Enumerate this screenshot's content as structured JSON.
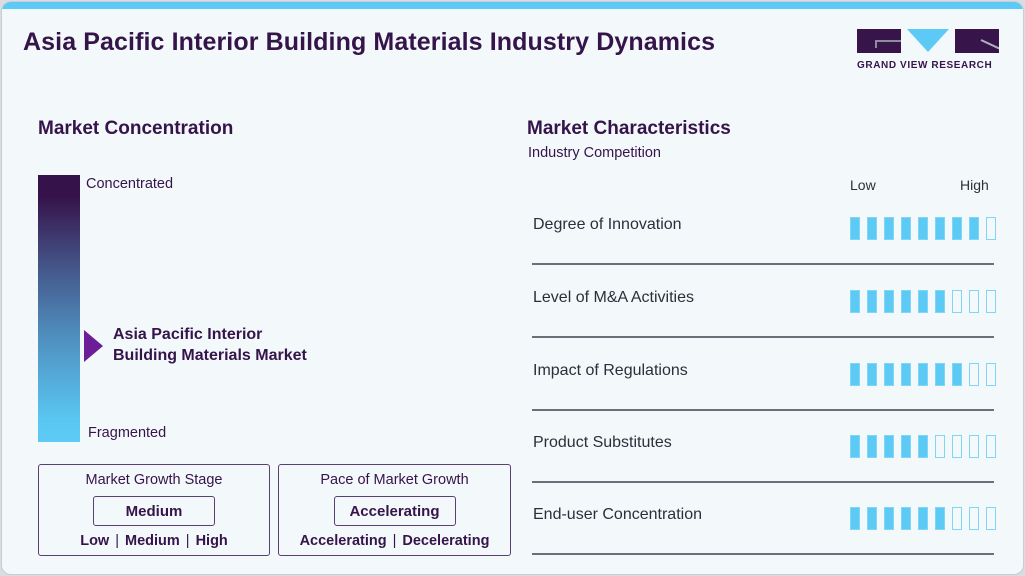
{
  "header": {
    "title": "Asia Pacific Interior Building Materials Industry Dynamics",
    "logo_text": "GRAND VIEW RESEARCH"
  },
  "colors": {
    "accent_blue": "#5ccaf4",
    "brand_purple": "#35144a",
    "marker_purple": "#6b1e95"
  },
  "concentration": {
    "title": "Market Concentration",
    "top_label": "Concentrated",
    "bottom_label": "Fragmented",
    "market_line1": "Asia Pacific Interior",
    "market_line2": "Building Materials Market",
    "marker_position_pct": 61
  },
  "growth_stage": {
    "title": "Market Growth Stage",
    "value": "Medium",
    "options": [
      "Low",
      "Medium",
      "High"
    ]
  },
  "growth_pace": {
    "title": "Pace of Market Growth",
    "value": "Accelerating",
    "options": [
      "Accelerating",
      "Decelerating"
    ]
  },
  "characteristics": {
    "title": "Market Characteristics",
    "subtitle": "Industry Competition",
    "scale_low": "Low",
    "scale_high": "High",
    "max_rating": 9,
    "rows": [
      {
        "label": "Degree of Innovation",
        "rating": 8
      },
      {
        "label": "Level of M&A Activities",
        "rating": 6
      },
      {
        "label": "Impact of Regulations",
        "rating": 7
      },
      {
        "label": "Product Substitutes",
        "rating": 5
      },
      {
        "label": "End-user Concentration",
        "rating": 6
      }
    ]
  },
  "chart_data": {
    "type": "bar",
    "title": "Market Characteristics - Industry Competition",
    "categories": [
      "Degree of Innovation",
      "Level of M&A Activities",
      "Impact of Regulations",
      "Product Substitutes",
      "End-user Concentration"
    ],
    "values": [
      8,
      6,
      7,
      5,
      6
    ],
    "ylim": [
      0,
      9
    ],
    "xlabel": "",
    "ylabel": "Low - High"
  }
}
